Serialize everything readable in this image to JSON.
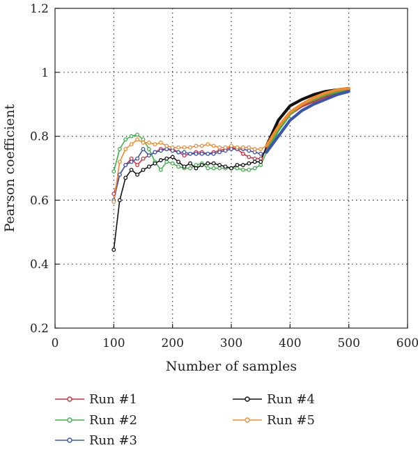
{
  "chart_data": {
    "type": "line",
    "title": "",
    "xlabel": "Number of samples",
    "ylabel": "Pearson coefficient",
    "xlim": [
      0,
      600
    ],
    "ylim": [
      0.2,
      1.2
    ],
    "x_ticks": [
      0,
      100,
      200,
      300,
      400,
      500,
      600
    ],
    "y_ticks": [
      0.2,
      0.4,
      0.6,
      0.8,
      1.0,
      1.2
    ],
    "x_tick_labels": [
      "0",
      "100",
      "200",
      "300",
      "400",
      "500",
      "600"
    ],
    "y_tick_labels": [
      "0.2",
      "0.4",
      "0.6",
      "0.8",
      "1",
      "1.2"
    ],
    "grid": "dotted, interior ticks",
    "legend_position": "bottom, two columns",
    "series": [
      {
        "name": "Run #1",
        "color": "#d62d3c",
        "x": [
          100,
          110,
          120,
          130,
          140,
          150,
          160,
          170,
          180,
          190,
          200,
          210,
          220,
          230,
          240,
          250,
          260,
          270,
          280,
          290,
          300,
          310,
          320,
          330,
          340,
          350,
          360,
          380,
          400,
          420,
          440,
          460,
          480,
          500
        ],
        "y": [
          0.62,
          0.68,
          0.71,
          0.73,
          0.71,
          0.73,
          0.74,
          0.75,
          0.76,
          0.76,
          0.76,
          0.75,
          0.74,
          0.745,
          0.75,
          0.75,
          0.745,
          0.75,
          0.755,
          0.76,
          0.765,
          0.76,
          0.745,
          0.735,
          0.73,
          0.73,
          0.76,
          0.82,
          0.87,
          0.895,
          0.91,
          0.925,
          0.935,
          0.945
        ]
      },
      {
        "name": "Run #2",
        "color": "#3fb34a",
        "x": [
          100,
          110,
          120,
          130,
          140,
          150,
          160,
          170,
          180,
          190,
          200,
          210,
          220,
          230,
          240,
          250,
          260,
          270,
          280,
          290,
          300,
          310,
          320,
          330,
          340,
          350,
          360,
          380,
          400,
          420,
          440,
          460,
          480,
          500
        ],
        "y": [
          0.69,
          0.76,
          0.79,
          0.8,
          0.805,
          0.79,
          0.76,
          0.72,
          0.695,
          0.72,
          0.715,
          0.705,
          0.7,
          0.7,
          0.71,
          0.715,
          0.7,
          0.7,
          0.7,
          0.7,
          0.7,
          0.7,
          0.695,
          0.695,
          0.7,
          0.71,
          0.75,
          0.82,
          0.87,
          0.9,
          0.915,
          0.93,
          0.94,
          0.945
        ]
      },
      {
        "name": "Run #3",
        "color": "#3b56b0",
        "x": [
          100,
          110,
          120,
          130,
          140,
          150,
          160,
          170,
          180,
          190,
          200,
          210,
          220,
          230,
          240,
          250,
          260,
          270,
          280,
          290,
          300,
          310,
          320,
          330,
          340,
          350,
          360,
          380,
          400,
          420,
          440,
          460,
          480,
          500
        ],
        "y": [
          0.6,
          0.68,
          0.71,
          0.72,
          0.73,
          0.76,
          0.74,
          0.75,
          0.755,
          0.76,
          0.755,
          0.75,
          0.75,
          0.745,
          0.745,
          0.745,
          0.745,
          0.745,
          0.75,
          0.755,
          0.76,
          0.76,
          0.76,
          0.755,
          0.75,
          0.745,
          0.75,
          0.8,
          0.85,
          0.88,
          0.9,
          0.915,
          0.93,
          0.94
        ]
      },
      {
        "name": "Run #4",
        "color": "#111111",
        "x": [
          100,
          110,
          120,
          130,
          140,
          150,
          160,
          170,
          180,
          190,
          200,
          210,
          220,
          230,
          240,
          250,
          260,
          270,
          280,
          290,
          300,
          310,
          320,
          330,
          340,
          350,
          360,
          380,
          400,
          420,
          440,
          460,
          480,
          500
        ],
        "y": [
          0.445,
          0.6,
          0.67,
          0.695,
          0.68,
          0.695,
          0.705,
          0.715,
          0.725,
          0.73,
          0.735,
          0.72,
          0.705,
          0.715,
          0.7,
          0.71,
          0.715,
          0.715,
          0.71,
          0.705,
          0.7,
          0.71,
          0.71,
          0.715,
          0.72,
          0.72,
          0.77,
          0.85,
          0.895,
          0.915,
          0.93,
          0.94,
          0.945,
          0.95
        ]
      },
      {
        "name": "Run #5",
        "color": "#f58a2c",
        "x": [
          100,
          110,
          120,
          130,
          140,
          150,
          160,
          170,
          180,
          190,
          200,
          210,
          220,
          230,
          240,
          250,
          260,
          270,
          280,
          290,
          300,
          310,
          320,
          330,
          340,
          350,
          360,
          380,
          400,
          420,
          440,
          460,
          480,
          500
        ],
        "y": [
          0.595,
          0.72,
          0.76,
          0.775,
          0.79,
          0.78,
          0.78,
          0.775,
          0.78,
          0.77,
          0.765,
          0.765,
          0.765,
          0.765,
          0.77,
          0.77,
          0.775,
          0.77,
          0.765,
          0.765,
          0.77,
          0.765,
          0.765,
          0.765,
          0.76,
          0.76,
          0.77,
          0.83,
          0.875,
          0.9,
          0.92,
          0.935,
          0.945,
          0.95
        ]
      }
    ]
  }
}
